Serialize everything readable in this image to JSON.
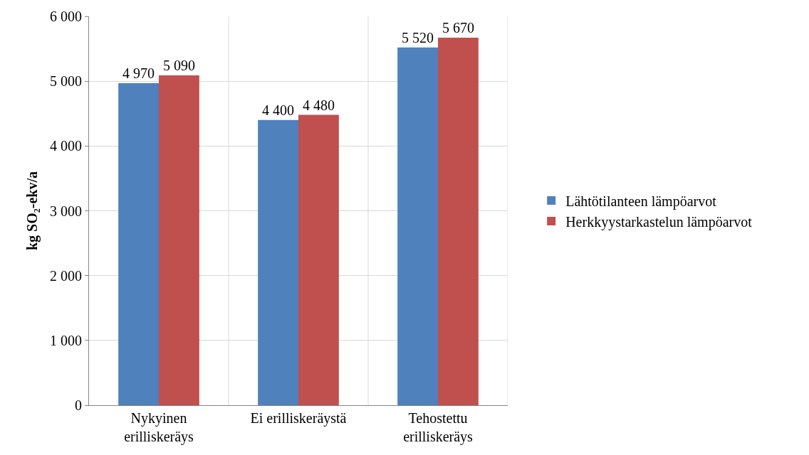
{
  "chart_data": {
    "type": "bar",
    "ylabel": "kg SO₂-ekv/a",
    "categories": [
      "Nykyinen erilliskeräys",
      "Ei erilliskeräystä",
      "Tehostettu erilliskeräys"
    ],
    "series": [
      {
        "name": "Lähtötilanteen lämpöarvot",
        "color": "#4f81bd",
        "values": [
          4970,
          4400,
          5520
        ],
        "value_labels": [
          "4 970",
          "4 400",
          "5 520"
        ]
      },
      {
        "name": "Herkkyystarkastelun lämpöarvot",
        "color": "#c0504d",
        "values": [
          5090,
          4480,
          5670
        ],
        "value_labels": [
          "5 090",
          "4 480",
          "5 670"
        ]
      }
    ],
    "ylim": [
      0,
      6000
    ],
    "yticks": [
      {
        "value": 0,
        "label": "0"
      },
      {
        "value": 1000,
        "label": "1 000"
      },
      {
        "value": 2000,
        "label": "2 000"
      },
      {
        "value": 3000,
        "label": "3 000"
      },
      {
        "value": 4000,
        "label": "4 000"
      },
      {
        "value": 5000,
        "label": "5 000"
      },
      {
        "value": 6000,
        "label": "6 000"
      }
    ],
    "grid": true,
    "legend": "right"
  }
}
